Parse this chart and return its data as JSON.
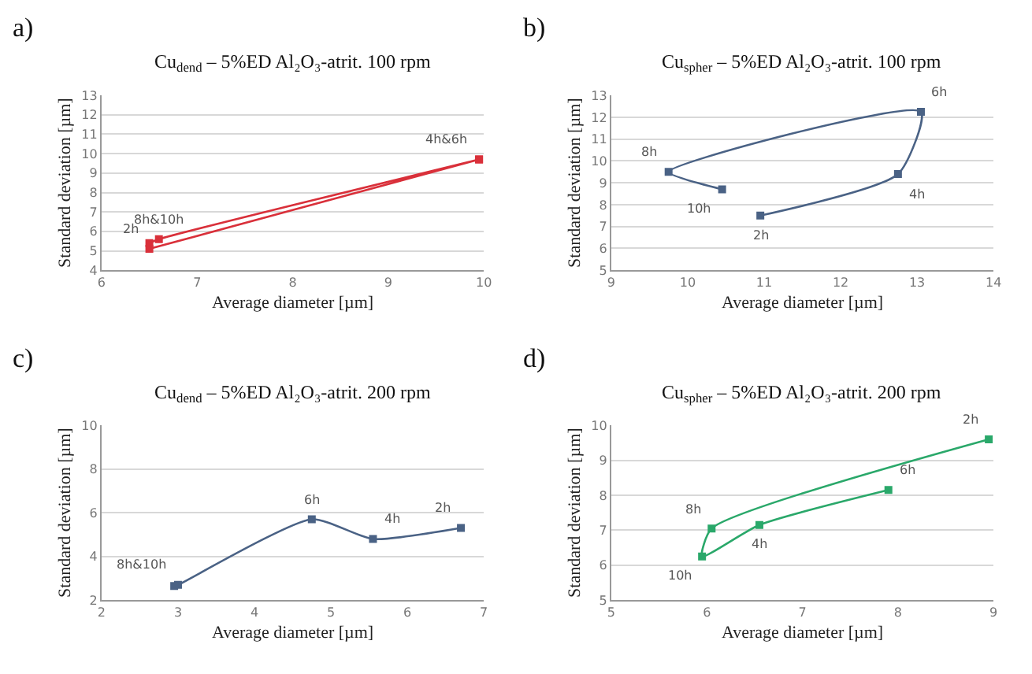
{
  "chart_data": [
    {
      "type": "line",
      "title": "Cu$_{dend}$ – 5%ED Al₂O₃-atrit. 100 rpm",
      "xlabel": "Average diameter [µm]",
      "ylabel": "Standard deviation [µm]",
      "marker": "square",
      "grid": "y",
      "x": [
        6.5,
        9.95,
        9.95,
        6.6,
        6.5
      ],
      "series": [
        {
          "color": "#d9303a",
          "values": [
            5.1,
            9.7,
            9.7,
            5.6,
            5.4
          ]
        }
      ],
      "xlim": [
        6,
        10
      ],
      "xticks": [
        6,
        7,
        8,
        9,
        10
      ],
      "ylim": [
        4,
        13
      ],
      "yticks": [
        4,
        5,
        6,
        7,
        8,
        9,
        10,
        11,
        12,
        13
      ],
      "annotations": [
        "a)",
        {
          "text": "2h",
          "x": 6.5,
          "y": 5.1
        },
        {
          "text": "4h&6h",
          "x": 9.95,
          "y": 9.7
        },
        {
          "text": "8h&10h",
          "x": 6.6,
          "y": 5.6
        }
      ]
    },
    {
      "type": "line",
      "title": "Cu$_{spher}$ – 5%ED Al₂O₃-atrit. 100 rpm",
      "xlabel": "Average diameter [µm]",
      "ylabel": "Standard deviation [µm]",
      "marker": "square",
      "grid": "y",
      "x": [
        10.95,
        12.75,
        13.05,
        9.75,
        10.45
      ],
      "series": [
        {
          "color": "#4a6285",
          "values": [
            7.5,
            9.4,
            12.25,
            9.5,
            8.7
          ]
        }
      ],
      "xlim": [
        9,
        14
      ],
      "xticks": [
        9,
        10,
        11,
        12,
        13,
        14
      ],
      "ylim": [
        5,
        13
      ],
      "yticks": [
        5,
        6,
        7,
        8,
        9,
        10,
        11,
        12,
        13
      ],
      "annotations": [
        "b)",
        {
          "text": "2h",
          "x": 10.95,
          "y": 7.5
        },
        {
          "text": "4h",
          "x": 12.75,
          "y": 9.4
        },
        {
          "text": "6h",
          "x": 13.05,
          "y": 12.25
        },
        {
          "text": "8h",
          "x": 9.75,
          "y": 9.5
        },
        {
          "text": "10h",
          "x": 10.45,
          "y": 8.7
        }
      ]
    },
    {
      "type": "line",
      "title": "Cu$_{dend}$ – 5%ED Al₂O₃-atrit. 200 rpm",
      "xlabel": "Average diameter [µm]",
      "ylabel": "Standard deviation [µm]",
      "marker": "square",
      "grid": "y",
      "x": [
        6.7,
        5.55,
        4.75,
        3.0,
        2.95
      ],
      "series": [
        {
          "color": "#4a6285",
          "values": [
            5.3,
            4.8,
            5.7,
            2.7,
            2.65
          ]
        }
      ],
      "xlim": [
        2,
        7
      ],
      "xticks": [
        2,
        3,
        4,
        5,
        6,
        7
      ],
      "ylim": [
        2,
        10
      ],
      "yticks": [
        2,
        4,
        6,
        8,
        10
      ],
      "annotations": [
        "c)",
        {
          "text": "2h",
          "x": 6.7,
          "y": 5.3
        },
        {
          "text": "4h",
          "x": 5.55,
          "y": 4.8
        },
        {
          "text": "6h",
          "x": 4.75,
          "y": 5.7
        },
        {
          "text": "8h&10h",
          "x": 3.0,
          "y": 2.7
        }
      ]
    },
    {
      "type": "line",
      "title": "Cu$_{spher}$ – 5%ED Al₂O₃-atrit. 200 rpm",
      "xlabel": "Average diameter [µm]",
      "ylabel": "Standard deviation [µm]",
      "marker": "square",
      "grid": "y",
      "x": [
        8.95,
        6.05,
        5.95,
        6.55,
        7.9
      ],
      "series": [
        {
          "color": "#2aa86a",
          "values": [
            9.6,
            7.05,
            6.25,
            7.15,
            8.15
          ]
        }
      ],
      "xlim": [
        5,
        9
      ],
      "xticks": [
        5,
        6,
        7,
        8,
        9
      ],
      "ylim": [
        5,
        10
      ],
      "yticks": [
        5,
        6,
        7,
        8,
        9,
        10
      ],
      "annotations": [
        "d)",
        {
          "text": "2h",
          "x": 8.95,
          "y": 9.6
        },
        {
          "text": "8h",
          "x": 6.05,
          "y": 7.05
        },
        {
          "text": "10h",
          "x": 5.95,
          "y": 6.25
        },
        {
          "text": "4h",
          "x": 6.55,
          "y": 7.15
        },
        {
          "text": "6h",
          "x": 7.9,
          "y": 8.15
        }
      ]
    }
  ]
}
